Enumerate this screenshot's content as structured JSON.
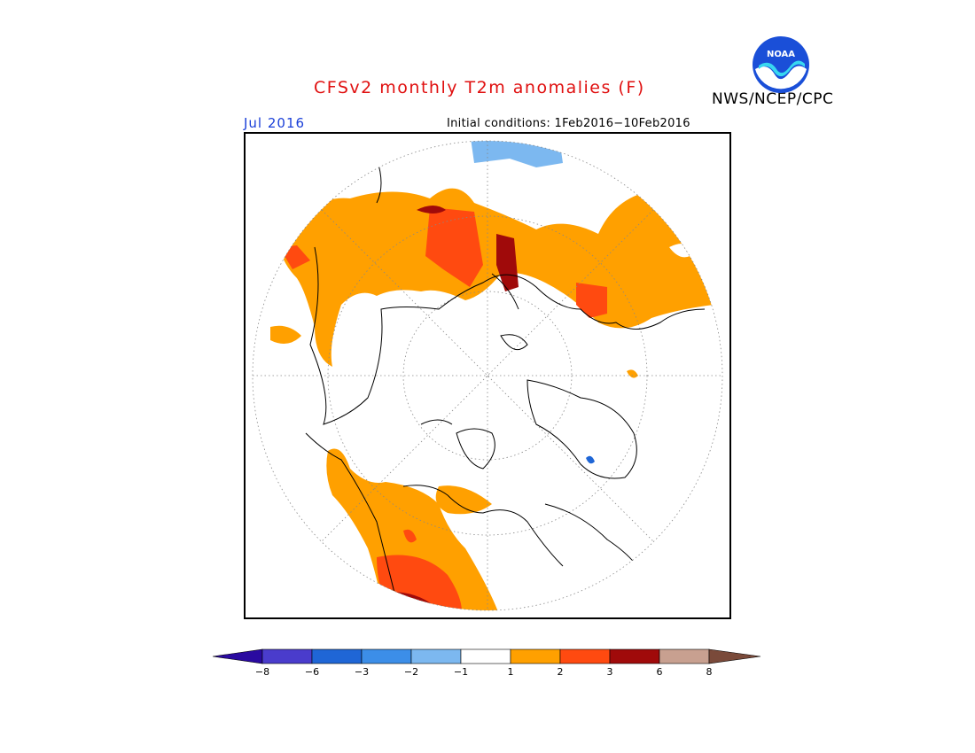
{
  "header": {
    "title": "CFSv2 monthly T2m anomalies (F)",
    "agency": "NWS/NCEP/CPC",
    "valid_month": "Jul 2016",
    "initial_conditions": "Initial conditions: 1Feb2016−10Feb2016",
    "logo_text": "NOAA"
  },
  "map": {
    "projection": "north-polar-stereographic",
    "variable": "2m temperature anomaly",
    "units": "F",
    "regions_warm": [
      "Europe",
      "Western Russia",
      "Central Asia",
      "Western North America",
      "Southwestern US"
    ],
    "regions_cool": [
      "Northwest Africa / Atlantic (small)",
      "Greenland coast (small)"
    ]
  },
  "colorbar": {
    "tick_labels": [
      "−8",
      "−6",
      "−3",
      "−2",
      "−1",
      "1",
      "2",
      "3",
      "6",
      "8"
    ],
    "colors": [
      "#2a0aa0",
      "#4a3ccc",
      "#1f66d6",
      "#3c8ee8",
      "#7cb8f0",
      "#ffffff",
      "#ffa000",
      "#ff4a10",
      "#a00a0a",
      "#c8a090",
      "#7a4a3a"
    ],
    "extend_low_color": "#2a0aa0",
    "extend_high_color": "#7a4a3a"
  }
}
